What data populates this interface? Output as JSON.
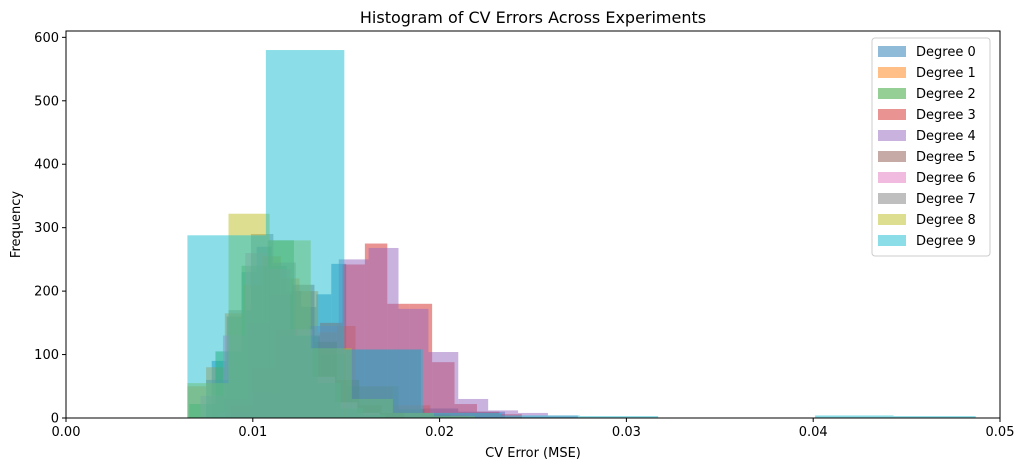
{
  "chart_data": {
    "type": "histogram",
    "title": "Histogram of CV Errors Across Experiments",
    "xlabel": "CV Error (MSE)",
    "ylabel": "Frequency",
    "xlim": [
      0,
      0.05
    ],
    "ylim": [
      0,
      610
    ],
    "xticks": [
      {
        "value": 0,
        "label": "0.00"
      },
      {
        "value": 0.01,
        "label": "0.01"
      },
      {
        "value": 0.02,
        "label": "0.02"
      },
      {
        "value": 0.03,
        "label": "0.03"
      },
      {
        "value": 0.04,
        "label": "0.04"
      },
      {
        "value": 0.05,
        "label": "0.05"
      }
    ],
    "yticks": [
      {
        "value": 0,
        "label": "0"
      },
      {
        "value": 100,
        "label": "100"
      },
      {
        "value": 200,
        "label": "200"
      },
      {
        "value": 300,
        "label": "300"
      },
      {
        "value": 400,
        "label": "400"
      },
      {
        "value": 500,
        "label": "500"
      },
      {
        "value": 600,
        "label": "600"
      }
    ],
    "legend_position": "top-right",
    "bar_alpha": 0.5,
    "series": [
      {
        "name": "Degree 0",
        "color": "#1f77b4",
        "bins": [
          [
            0.0078,
            0.0086,
            90
          ],
          [
            0.0086,
            0.0094,
            160
          ],
          [
            0.0094,
            0.0102,
            230
          ],
          [
            0.0102,
            0.011,
            270
          ],
          [
            0.011,
            0.0118,
            240
          ],
          [
            0.0118,
            0.0126,
            200
          ],
          [
            0.0126,
            0.0134,
            175
          ],
          [
            0.0134,
            0.0142,
            195
          ],
          [
            0.0142,
            0.015,
            243
          ],
          [
            0.015,
            0.017,
            108
          ],
          [
            0.017,
            0.019,
            108
          ],
          [
            0.019,
            0.021,
            15
          ],
          [
            0.021,
            0.0235,
            10
          ]
        ]
      },
      {
        "name": "Degree 1",
        "color": "#ff7f0e",
        "bins": [
          [
            0.0065,
            0.0075,
            50
          ],
          [
            0.0075,
            0.0085,
            80
          ],
          [
            0.0085,
            0.0095,
            165
          ],
          [
            0.0095,
            0.0105,
            210
          ],
          [
            0.0105,
            0.0115,
            255
          ],
          [
            0.0115,
            0.0125,
            220
          ],
          [
            0.0125,
            0.0135,
            200
          ],
          [
            0.0135,
            0.0145,
            135
          ],
          [
            0.0145,
            0.0155,
            145
          ],
          [
            0.0155,
            0.0175,
            50
          ],
          [
            0.0175,
            0.0195,
            20
          ],
          [
            0.0195,
            0.0215,
            5
          ]
        ]
      },
      {
        "name": "Degree 2",
        "color": "#2ca02c",
        "bins": [
          [
            0.0066,
            0.008,
            22
          ],
          [
            0.008,
            0.0094,
            105
          ],
          [
            0.0094,
            0.0108,
            240
          ],
          [
            0.0108,
            0.0122,
            280
          ],
          [
            0.0122,
            0.0136,
            128
          ],
          [
            0.0136,
            0.015,
            100
          ],
          [
            0.015,
            0.0164,
            50
          ],
          [
            0.0164,
            0.0178,
            50
          ],
          [
            0.0178,
            0.0192,
            14
          ],
          [
            0.0192,
            0.0206,
            6
          ]
        ]
      },
      {
        "name": "Degree 3",
        "color": "#d62728",
        "bins": [
          [
            0.0088,
            0.01,
            20
          ],
          [
            0.01,
            0.0112,
            80
          ],
          [
            0.0112,
            0.0124,
            140
          ],
          [
            0.0124,
            0.0136,
            130
          ],
          [
            0.0136,
            0.0148,
            150
          ],
          [
            0.0148,
            0.016,
            242
          ],
          [
            0.016,
            0.0172,
            275
          ],
          [
            0.0172,
            0.0184,
            180
          ],
          [
            0.0184,
            0.0196,
            180
          ],
          [
            0.0196,
            0.0208,
            88
          ],
          [
            0.0208,
            0.022,
            22
          ],
          [
            0.022,
            0.0232,
            10
          ],
          [
            0.0232,
            0.0244,
            6
          ]
        ]
      },
      {
        "name": "Degree 4",
        "color": "#9467bd",
        "bins": [
          [
            0.0082,
            0.0098,
            10
          ],
          [
            0.0098,
            0.0114,
            40
          ],
          [
            0.0114,
            0.013,
            130
          ],
          [
            0.013,
            0.0146,
            145
          ],
          [
            0.0146,
            0.0162,
            250
          ],
          [
            0.0162,
            0.0178,
            268
          ],
          [
            0.0178,
            0.0194,
            172
          ],
          [
            0.0194,
            0.021,
            104
          ],
          [
            0.021,
            0.0226,
            30
          ],
          [
            0.0226,
            0.0242,
            12
          ],
          [
            0.0242,
            0.0258,
            8
          ],
          [
            0.0258,
            0.0274,
            4
          ]
        ]
      },
      {
        "name": "Degree 5",
        "color": "#8c564b",
        "bins": [
          [
            0.0085,
            0.0097,
            30
          ],
          [
            0.0097,
            0.0109,
            150
          ],
          [
            0.0109,
            0.0121,
            195
          ],
          [
            0.0121,
            0.0133,
            210
          ],
          [
            0.0133,
            0.0145,
            120
          ],
          [
            0.0145,
            0.0157,
            60
          ],
          [
            0.0157,
            0.0169,
            20
          ],
          [
            0.0169,
            0.0181,
            8
          ]
        ]
      },
      {
        "name": "Degree 6",
        "color": "#e377c2",
        "bins": [
          [
            0.0072,
            0.0084,
            35
          ],
          [
            0.0084,
            0.0096,
            130
          ],
          [
            0.0096,
            0.0108,
            260
          ],
          [
            0.0108,
            0.012,
            235
          ],
          [
            0.012,
            0.0132,
            140
          ],
          [
            0.0132,
            0.0144,
            65
          ],
          [
            0.0144,
            0.0156,
            25
          ],
          [
            0.0156,
            0.0168,
            8
          ]
        ]
      },
      {
        "name": "Degree 7",
        "color": "#7f7f7f",
        "bins": [
          [
            0.0075,
            0.0087,
            60
          ],
          [
            0.0087,
            0.0099,
            170
          ],
          [
            0.0099,
            0.0111,
            290
          ],
          [
            0.0111,
            0.0123,
            245
          ],
          [
            0.0123,
            0.0135,
            130
          ],
          [
            0.0135,
            0.0147,
            55
          ],
          [
            0.0147,
            0.0159,
            15
          ],
          [
            0.0159,
            0.0171,
            5
          ]
        ]
      },
      {
        "name": "Degree 8",
        "color": "#bcbd22",
        "bins": [
          [
            0.0065,
            0.0087,
            55
          ],
          [
            0.0087,
            0.0109,
            322
          ],
          [
            0.0109,
            0.0131,
            280
          ],
          [
            0.0131,
            0.0153,
            110
          ],
          [
            0.0153,
            0.0175,
            30
          ],
          [
            0.0175,
            0.0197,
            8
          ],
          [
            0.0197,
            0.0219,
            3
          ]
        ]
      },
      {
        "name": "Degree 9",
        "color": "#17becf",
        "bins": [
          [
            0.0065,
            0.0107,
            288
          ],
          [
            0.0107,
            0.0149,
            580
          ],
          [
            0.0149,
            0.0191,
            108
          ],
          [
            0.0191,
            0.0233,
            8
          ],
          [
            0.0233,
            0.0275,
            4
          ],
          [
            0.0275,
            0.0317,
            3
          ],
          [
            0.0317,
            0.0359,
            0
          ],
          [
            0.0359,
            0.0401,
            0
          ],
          [
            0.0401,
            0.0443,
            4
          ],
          [
            0.0443,
            0.0487,
            3
          ]
        ]
      }
    ]
  }
}
